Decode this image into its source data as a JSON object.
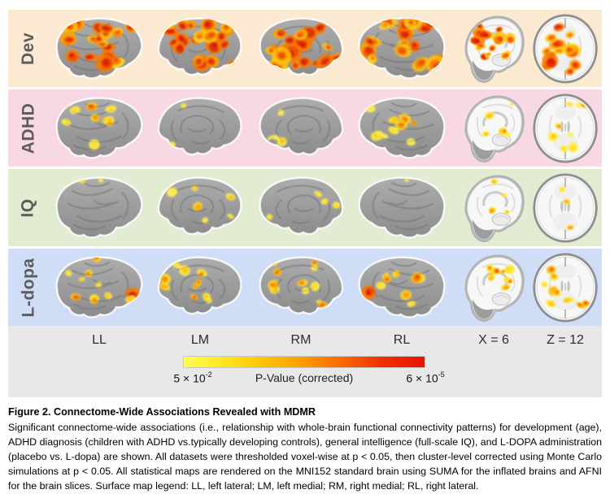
{
  "figure": {
    "columns": [
      "LL",
      "LM",
      "RM",
      "RL",
      "X = 6",
      "Z = 12"
    ],
    "rows": [
      {
        "label": "Dev",
        "bg": "#fce9d1",
        "cells": [
          {
            "type": "lateral",
            "blobs": 20,
            "heat": 0.82,
            "r": [
              5.5,
              12
            ],
            "seed": 101
          },
          {
            "type": "medial",
            "blobs": 22,
            "heat": 0.85,
            "r": [
              5.5,
              12.5
            ],
            "seed": 102
          },
          {
            "type": "medial",
            "mirror": true,
            "blobs": 22,
            "heat": 0.85,
            "r": [
              5.5,
              12.5
            ],
            "seed": 103
          },
          {
            "type": "lateral",
            "mirror": true,
            "blobs": 20,
            "heat": 0.82,
            "r": [
              5.5,
              12
            ],
            "seed": 104
          },
          {
            "type": "sagittal",
            "blobs": 15,
            "heat": 0.8,
            "r": [
              4.5,
              10
            ],
            "seed": 105
          },
          {
            "type": "axial",
            "blobs": 14,
            "heat": 0.82,
            "r": [
              5,
              11
            ],
            "seed": 106
          }
        ]
      },
      {
        "label": "ADHD",
        "bg": "#f8d8e4",
        "cells": [
          {
            "type": "lateral",
            "blobs": 9,
            "heat": 0.42,
            "r": [
              3.5,
              7.5
            ],
            "seed": 201,
            "focus": [
              [
                52,
                15,
                7,
                0.72
              ]
            ]
          },
          {
            "type": "medial",
            "blobs": 3,
            "heat": 0.3,
            "r": [
              3,
              5.5
            ],
            "seed": 202
          },
          {
            "type": "medial",
            "mirror": true,
            "blobs": 4,
            "heat": 0.32,
            "r": [
              3,
              6
            ],
            "seed": 203
          },
          {
            "type": "lateral",
            "mirror": true,
            "blobs": 8,
            "heat": 0.45,
            "r": [
              3.5,
              8
            ],
            "seed": 204,
            "focus": [
              [
                62,
                38,
                8,
                0.6
              ]
            ]
          },
          {
            "type": "sagittal",
            "blobs": 6,
            "heat": 0.42,
            "r": [
              3.5,
              6.5
            ],
            "seed": 205
          },
          {
            "type": "axial",
            "blobs": 9,
            "heat": 0.45,
            "r": [
              3.5,
              7
            ],
            "seed": 206
          }
        ]
      },
      {
        "label": "IQ",
        "bg": "#e1ecd3",
        "cells": [
          {
            "type": "lateral",
            "blobs": 0,
            "heat": 0.25,
            "r": [
              3,
              5
            ],
            "seed": 301,
            "focus": [
              [
                40,
                9,
                4,
                0.3
              ],
              [
                63,
                8,
                3,
                0.25
              ]
            ]
          },
          {
            "type": "medial",
            "blobs": 5,
            "heat": 0.35,
            "r": [
              3,
              6
            ],
            "seed": 302,
            "focus": [
              [
                28,
                22,
                5,
                0.5
              ],
              [
                58,
                40,
                6,
                0.55
              ]
            ]
          },
          {
            "type": "medial",
            "mirror": true,
            "blobs": 4,
            "heat": 0.32,
            "r": [
              3,
              6
            ],
            "seed": 303
          },
          {
            "type": "lateral",
            "mirror": true,
            "blobs": 0,
            "heat": 0.2,
            "r": [
              3,
              5
            ],
            "seed": 304,
            "focus": [
              [
                55,
                8,
                3,
                0.28
              ]
            ]
          },
          {
            "type": "sagittal",
            "blobs": 0,
            "heat": 0.4,
            "r": [
              3,
              5
            ],
            "seed": 305,
            "focus": [
              [
                44,
                12,
                5,
                0.5
              ],
              [
                57,
                30,
                4,
                0.35
              ],
              [
                41,
                50,
                5,
                0.55
              ],
              [
                60,
                52,
                4,
                0.4
              ]
            ]
          },
          {
            "type": "axial",
            "blobs": 0,
            "heat": 0.45,
            "r": [
              3,
              5
            ],
            "seed": 306,
            "focus": [
              [
                47,
                38,
                5,
                0.55
              ],
              [
                51,
                71,
                5,
                0.6
              ],
              [
                41,
                22,
                4,
                0.35
              ]
            ]
          }
        ]
      },
      {
        "label": "L-dopa",
        "bg": "#cfddf6",
        "cells": [
          {
            "type": "lateral",
            "blobs": 7,
            "heat": 0.48,
            "r": [
              3.5,
              7
            ],
            "seed": 401,
            "focus": [
              [
                102,
                50,
                9,
                0.9
              ],
              [
                58,
                6,
                5,
                0.6
              ],
              [
                55,
                55,
                6,
                0.45
              ],
              [
                72,
                52,
                5,
                0.5
              ]
            ]
          },
          {
            "type": "medial",
            "blobs": 12,
            "heat": 0.5,
            "r": [
              3.5,
              7.5
            ],
            "seed": 402
          },
          {
            "type": "medial",
            "mirror": true,
            "blobs": 12,
            "heat": 0.5,
            "r": [
              3.5,
              7.5
            ],
            "seed": 403
          },
          {
            "type": "lateral",
            "mirror": true,
            "blobs": 8,
            "heat": 0.52,
            "r": [
              3.5,
              8
            ],
            "seed": 404,
            "focus": [
              [
                102,
                48,
                9,
                0.88
              ]
            ]
          },
          {
            "type": "sagittal",
            "blobs": 11,
            "heat": 0.5,
            "r": [
              3.5,
              7
            ],
            "seed": 405
          },
          {
            "type": "axial",
            "blobs": 10,
            "heat": 0.5,
            "r": [
              4,
              7.5
            ],
            "seed": 406
          }
        ]
      }
    ],
    "colorbar": {
      "title": "P-Value (corrected)",
      "min_base": "5 × 10",
      "min_exp": "-2",
      "max_base": "6 × 10",
      "max_exp": "-5",
      "gradient": [
        "#ffff55",
        "#ffe51e",
        "#ffc303",
        "#ff9a00",
        "#fb6400",
        "#ef2d00",
        "#e81500"
      ]
    }
  },
  "caption": {
    "title": "Figure 2. Connectome-Wide Associations Revealed with MDMR",
    "body": "Significant connectome-wide associations (i.e., relationship with whole-brain functional connectivity patterns) for development (age), ADHD diagnosis (children with ADHD vs.typically developing controls), general intelligence (full-scale IQ), and L-DOPA administration (placebo vs. L-dopa) are shown. All datasets were thresholded voxel-wise at p < 0.05, then cluster-level corrected using Monte Carlo simulations at p < 0.05. All statistical maps are rendered on the MNI152 standard brain using SUMA for the inflated brains and AFNI for the brain slices. Surface map legend: LL, left lateral; LM, left medial; RM, right medial; RL, right lateral."
  }
}
